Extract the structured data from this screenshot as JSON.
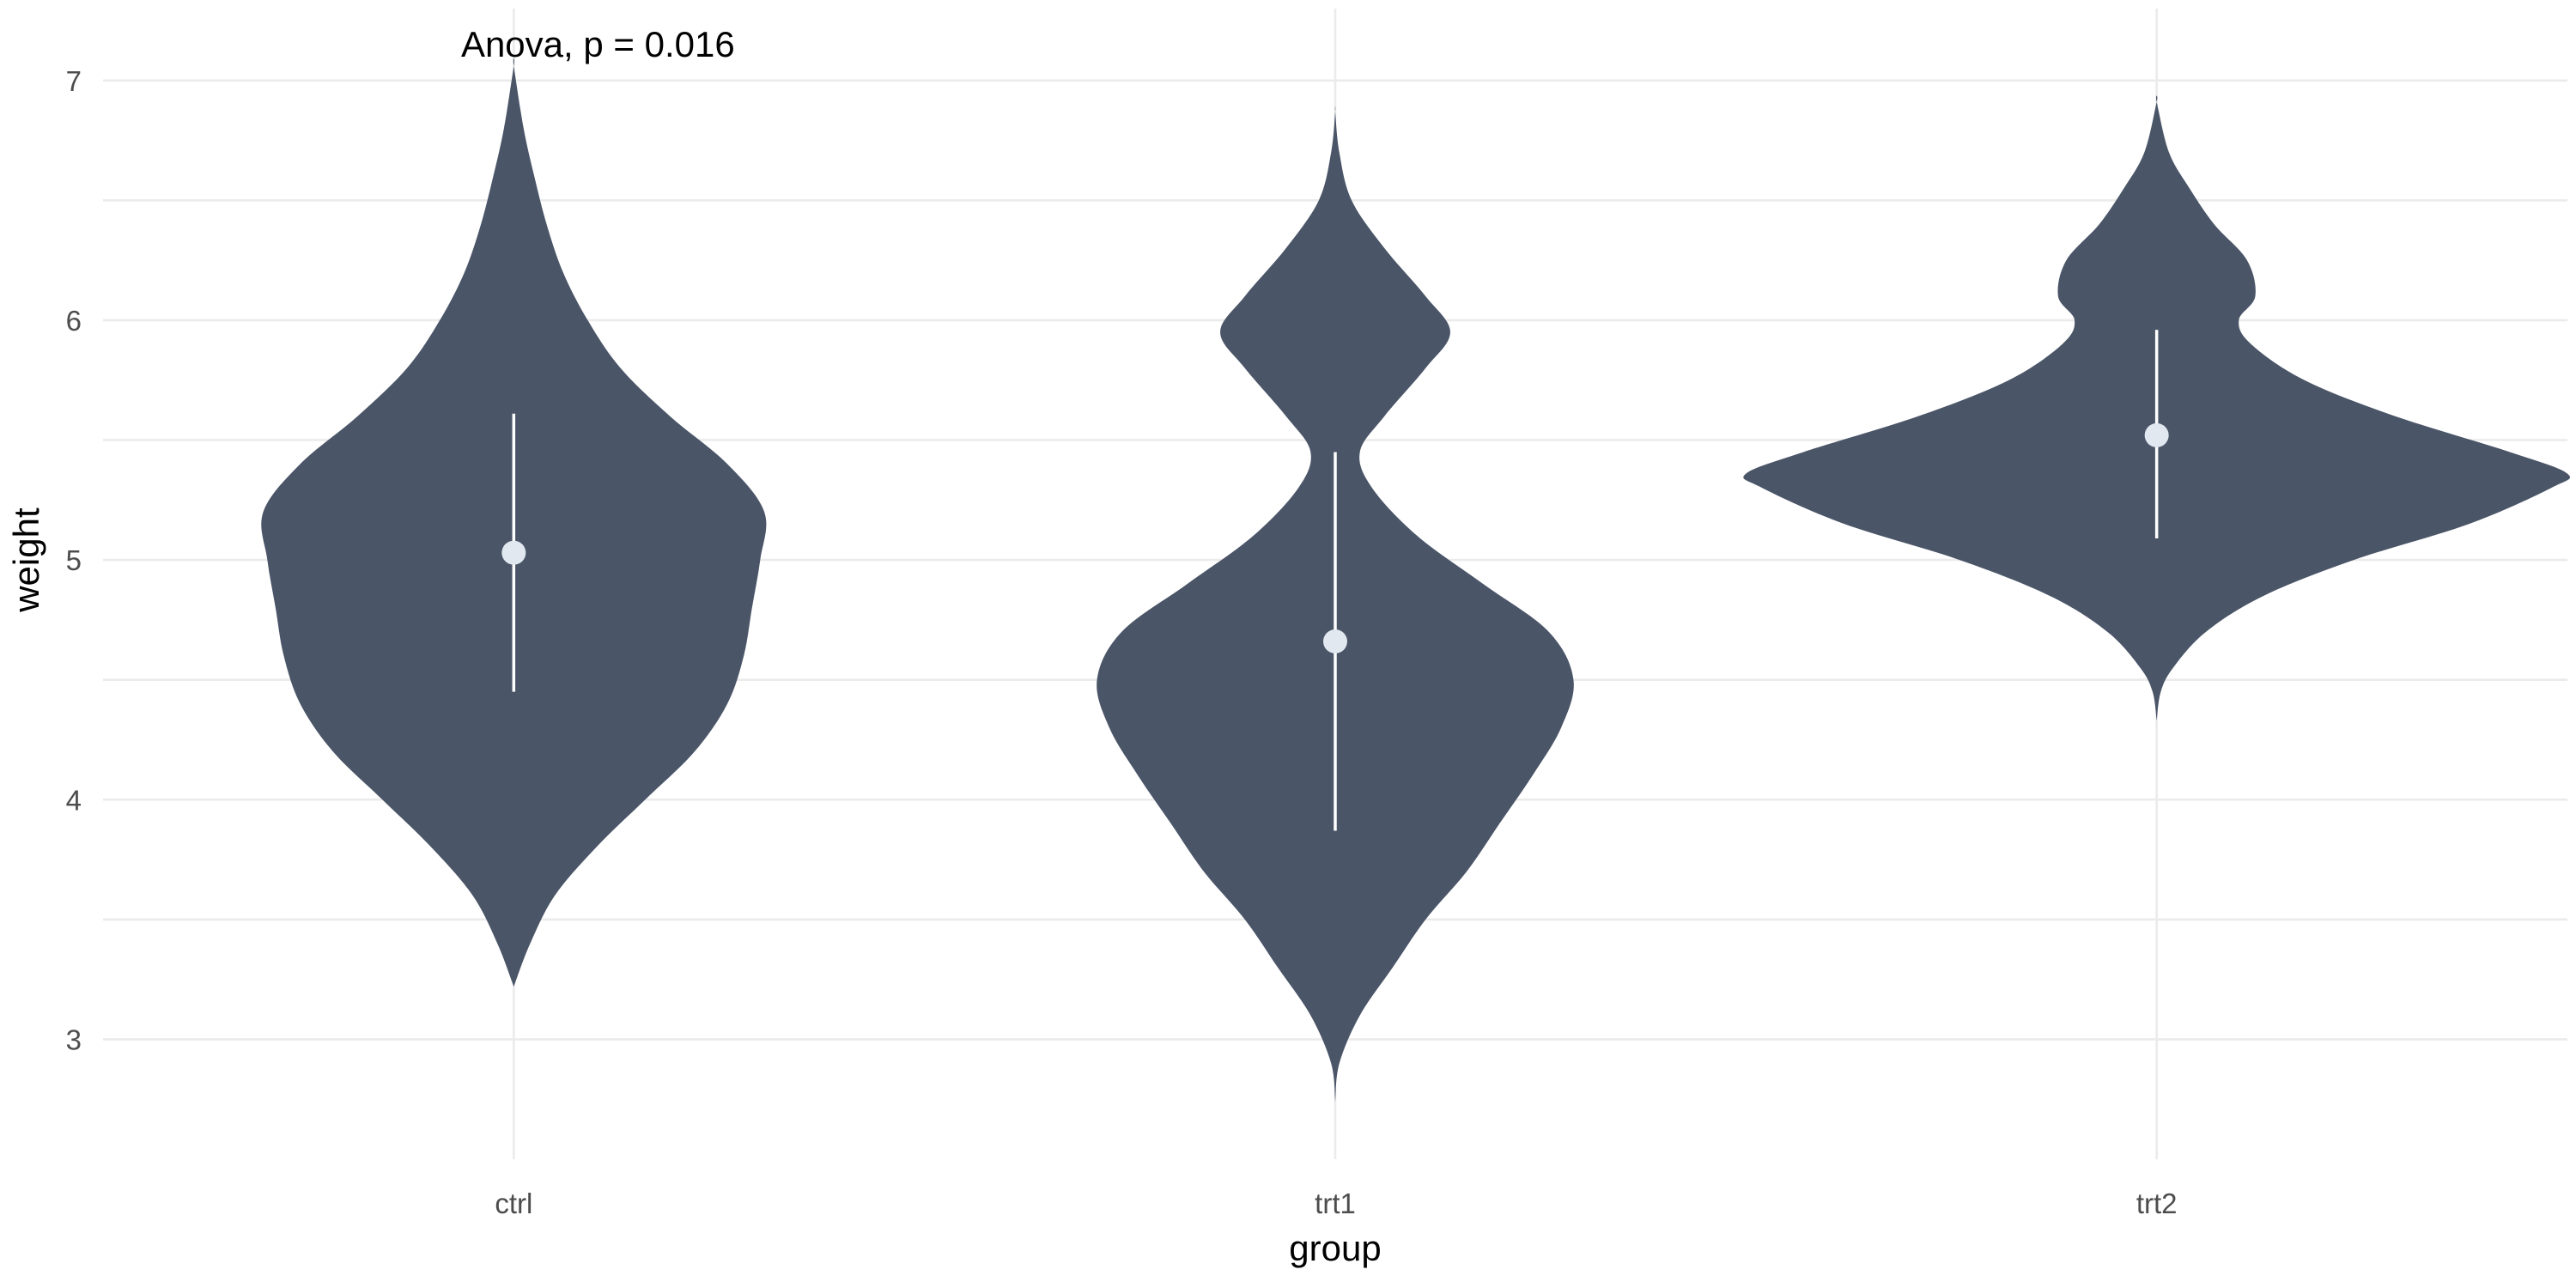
{
  "chart_data": {
    "type": "violin",
    "categories": [
      "ctrl",
      "trt1",
      "trt2"
    ],
    "xlabel": "group",
    "ylabel": "weight",
    "ylim": [
      2.5,
      7.3
    ],
    "yticks": [
      3,
      4,
      5,
      6,
      7
    ],
    "ytick_labels": [
      "3",
      "4",
      "5",
      "6",
      "7"
    ],
    "grid": true,
    "legend": "none",
    "annotation": {
      "text": "Anova, p = 0.016",
      "x_category": "ctrl",
      "y": 7.15
    },
    "colors": {
      "violin_fill": "#4a5568",
      "summary_point": "#e2e8f0",
      "summary_line": "#ffffff",
      "grid": "#ebebeb"
    },
    "violins": [
      {
        "category": "ctrl",
        "y_min": 3.22,
        "y_max": 7.06,
        "max_half_width": 0.305,
        "profile": [
          [
            3.22,
            0.0
          ],
          [
            3.4,
            0.02
          ],
          [
            3.6,
            0.05
          ],
          [
            3.8,
            0.1
          ],
          [
            4.0,
            0.16
          ],
          [
            4.2,
            0.22
          ],
          [
            4.4,
            0.26
          ],
          [
            4.6,
            0.28
          ],
          [
            4.8,
            0.29
          ],
          [
            5.0,
            0.3
          ],
          [
            5.2,
            0.305
          ],
          [
            5.4,
            0.26
          ],
          [
            5.6,
            0.19
          ],
          [
            5.8,
            0.13
          ],
          [
            6.0,
            0.09
          ],
          [
            6.2,
            0.06
          ],
          [
            6.4,
            0.04
          ],
          [
            6.6,
            0.025
          ],
          [
            6.8,
            0.012
          ],
          [
            7.06,
            0.0
          ]
        ],
        "mean": 5.03,
        "sd_low": 4.45,
        "sd_high": 5.61
      },
      {
        "category": "trt1",
        "y_min": 2.74,
        "y_max": 6.87,
        "max_half_width": 0.29,
        "profile": [
          [
            2.74,
            0.0
          ],
          [
            2.9,
            0.005
          ],
          [
            3.1,
            0.03
          ],
          [
            3.3,
            0.07
          ],
          [
            3.5,
            0.11
          ],
          [
            3.7,
            0.16
          ],
          [
            3.9,
            0.2
          ],
          [
            4.1,
            0.24
          ],
          [
            4.3,
            0.275
          ],
          [
            4.5,
            0.29
          ],
          [
            4.7,
            0.26
          ],
          [
            4.9,
            0.18
          ],
          [
            5.1,
            0.1
          ],
          [
            5.3,
            0.045
          ],
          [
            5.45,
            0.03
          ],
          [
            5.6,
            0.06
          ],
          [
            5.8,
            0.11
          ],
          [
            5.95,
            0.14
          ],
          [
            6.1,
            0.11
          ],
          [
            6.3,
            0.06
          ],
          [
            6.5,
            0.02
          ],
          [
            6.7,
            0.005
          ],
          [
            6.87,
            0.0
          ]
        ],
        "mean": 4.66,
        "sd_low": 3.87,
        "sd_high": 5.45
      },
      {
        "category": "trt2",
        "y_min": 4.33,
        "y_max": 6.91,
        "max_half_width": 0.5,
        "profile": [
          [
            4.33,
            0.0
          ],
          [
            4.45,
            0.005
          ],
          [
            4.55,
            0.02
          ],
          [
            4.7,
            0.06
          ],
          [
            4.85,
            0.13
          ],
          [
            5.0,
            0.24
          ],
          [
            5.15,
            0.38
          ],
          [
            5.3,
            0.48
          ],
          [
            5.36,
            0.5
          ],
          [
            5.45,
            0.43
          ],
          [
            5.6,
            0.29
          ],
          [
            5.75,
            0.18
          ],
          [
            5.9,
            0.115
          ],
          [
            6.0,
            0.1
          ],
          [
            6.1,
            0.12
          ],
          [
            6.25,
            0.11
          ],
          [
            6.4,
            0.07
          ],
          [
            6.55,
            0.04
          ],
          [
            6.7,
            0.015
          ],
          [
            6.91,
            0.0
          ]
        ],
        "mean": 5.52,
        "sd_low": 5.09,
        "sd_high": 5.96
      }
    ]
  }
}
